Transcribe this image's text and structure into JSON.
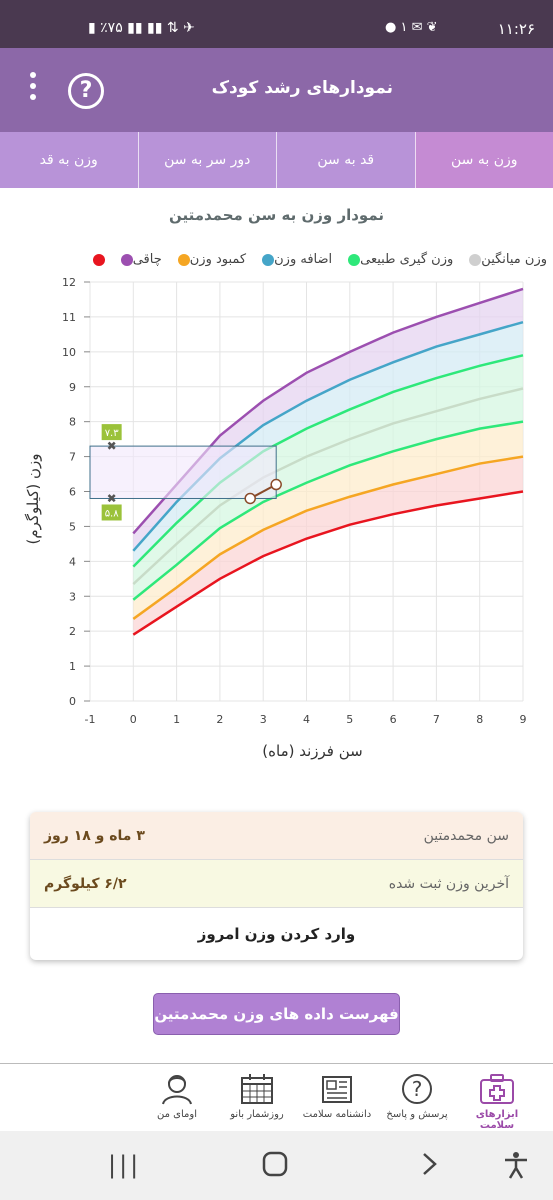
{
  "status_bar": {
    "time": "۱۱:۲۶",
    "battery": "٪۷۵",
    "notification_count": "۱"
  },
  "app_bar": {
    "title": "نمودارهای رشد کودک",
    "help_label": "?"
  },
  "tabs": [
    {
      "label": "وزن به سن",
      "active": true
    },
    {
      "label": "قد به سن",
      "active": false
    },
    {
      "label": "دور سر به سن",
      "active": false
    },
    {
      "label": "وزن به قد",
      "active": false
    }
  ],
  "chart_title": "نمودار وزن به سن محمدمتین",
  "legend": [
    {
      "label": "چاقی",
      "color": "#9c4fb0"
    },
    {
      "label": "کمبود وزن",
      "color": "#f5a623"
    },
    {
      "label": "اضافه وزن",
      "color": "#45a5c8"
    },
    {
      "label": "وزن گیری طبیعی",
      "color": "#2ee87a"
    },
    {
      "label": "وزن میانگین",
      "color": "#cfcfcf"
    },
    {
      "label": "",
      "color": "#e8151f"
    }
  ],
  "chart_data": {
    "type": "line",
    "xlabel": "سن فرزند (ماه)",
    "ylabel": "وزن (کیلوگرم)",
    "xlim": [
      -1,
      9
    ],
    "ylim": [
      0,
      12
    ],
    "x_ticks": [
      "-1",
      "0",
      "1",
      "2",
      "3",
      "4",
      "5",
      "6",
      "7",
      "8",
      "9"
    ],
    "y_ticks": [
      "0",
      "1",
      "2",
      "3",
      "4",
      "5",
      "6",
      "7",
      "8",
      "9",
      "10",
      "11",
      "12"
    ],
    "x": [
      0,
      1,
      2,
      3,
      4,
      5,
      6,
      7,
      8,
      9
    ],
    "series": [
      {
        "name": "چاقی",
        "color": "#9c4fb0",
        "values": [
          4.8,
          6.2,
          7.6,
          8.6,
          9.4,
          10.0,
          10.55,
          11.0,
          11.4,
          11.8
        ]
      },
      {
        "name": "اضافه وزن",
        "color": "#45a5c8",
        "values": [
          4.3,
          5.7,
          6.95,
          7.9,
          8.6,
          9.2,
          9.7,
          10.15,
          10.5,
          10.85
        ]
      },
      {
        "name": "وزن گیری طبیعی",
        "color": "#2ee87a",
        "values": [
          3.85,
          5.1,
          6.25,
          7.15,
          7.8,
          8.35,
          8.85,
          9.25,
          9.6,
          9.9
        ]
      },
      {
        "name": "وزن میانگین",
        "color": "#c8dcc8",
        "values": [
          3.35,
          4.5,
          5.6,
          6.4,
          7.0,
          7.5,
          7.95,
          8.3,
          8.65,
          8.95
        ]
      },
      {
        "name": "وزن گیری طبیعی",
        "color": "#2ee87a",
        "values": [
          2.9,
          3.9,
          4.95,
          5.7,
          6.25,
          6.75,
          7.15,
          7.5,
          7.8,
          8.0
        ]
      },
      {
        "name": "کمبود وزن",
        "color": "#f5a623",
        "values": [
          2.35,
          3.25,
          4.2,
          4.9,
          5.45,
          5.85,
          6.2,
          6.5,
          6.8,
          7.0
        ]
      },
      {
        "name": "",
        "color": "#e8151f",
        "values": [
          1.9,
          2.7,
          3.5,
          4.15,
          4.65,
          5.05,
          5.35,
          5.6,
          5.8,
          6.0
        ]
      }
    ],
    "bands": [
      {
        "fill": "#e6d4f0"
      },
      {
        "fill": "#d4ebf4"
      },
      {
        "fill": "#d6f7e2"
      },
      {
        "fill": "#d6f7e2"
      },
      {
        "fill": "#fdeccc"
      },
      {
        "fill": "#fbd6d6"
      }
    ],
    "user_points": [
      {
        "x": 2.7,
        "y": 5.8
      },
      {
        "x": 3.3,
        "y": 6.2
      }
    ],
    "highlight_range": {
      "x": [
        -1,
        3.3
      ],
      "y": [
        5.8,
        7.3
      ]
    },
    "range_labels": [
      "۷.۳",
      "۵.۸"
    ],
    "range_marker_x": -0.5
  },
  "info_card": {
    "age_label": "سن محمدمتین",
    "age_value": "۳ ماه و ۱۸ روز",
    "weight_label": "آخرین وزن ثبت شده",
    "weight_value": "۶/۲ کیلوگرم",
    "action_label": "وارد کردن وزن امروز"
  },
  "list_button": "فهرست داده های وزن محمدمتین",
  "bottom_nav": [
    {
      "label": "ابزارهای سلامت",
      "icon": "first-aid-kit-icon",
      "active": true
    },
    {
      "label": "پرسش و پاسخ",
      "icon": "question-icon",
      "active": false
    },
    {
      "label": "دانشنامه سلامت",
      "icon": "news-icon",
      "active": false
    },
    {
      "label": "روزشمار بانو",
      "icon": "calendar-icon",
      "active": false
    },
    {
      "label": "اومای من",
      "icon": "user-icon",
      "active": false
    }
  ]
}
